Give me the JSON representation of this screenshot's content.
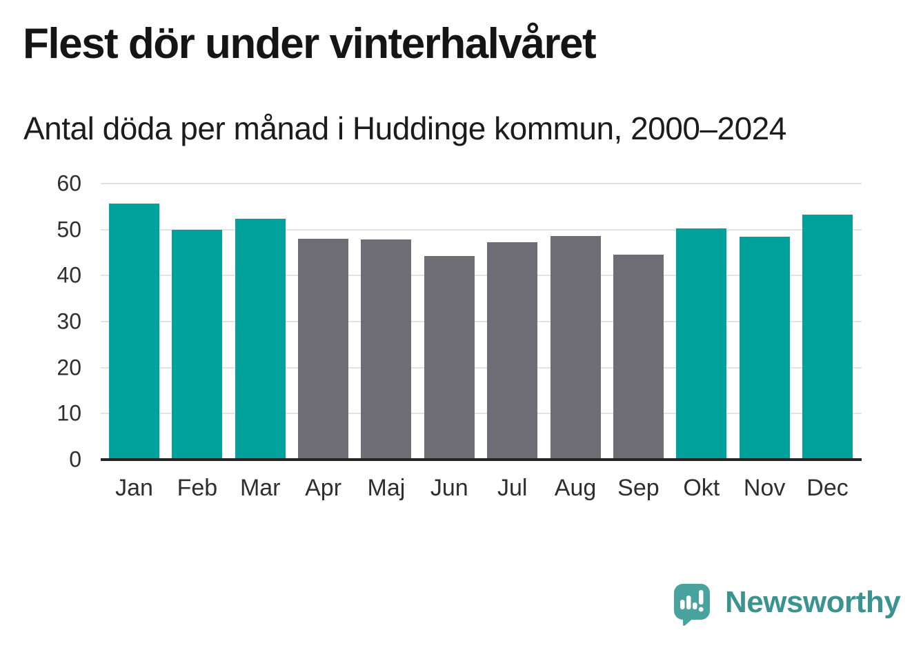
{
  "header": {
    "title": "Flest dör under vinterhalvåret",
    "subtitle": "Antal döda per månad i Huddinge kommun, 2000–2024"
  },
  "chart_data": {
    "type": "bar",
    "title": "Flest dör under vinterhalvåret",
    "subtitle": "Antal döda per månad i Huddinge kommun, 2000–2024",
    "categories": [
      "Jan",
      "Feb",
      "Mar",
      "Apr",
      "Maj",
      "Jun",
      "Jul",
      "Aug",
      "Sep",
      "Okt",
      "Nov",
      "Dec"
    ],
    "values": [
      55.7,
      50.0,
      52.4,
      48.0,
      47.9,
      44.3,
      47.2,
      48.6,
      44.6,
      50.3,
      48.5,
      53.3
    ],
    "bar_season": [
      "winter",
      "winter",
      "winter",
      "summer",
      "summer",
      "summer",
      "summer",
      "summer",
      "summer",
      "winter",
      "winter",
      "winter"
    ],
    "bar_palette": {
      "winter": "#00A29B",
      "summer": "#6E6C74"
    },
    "xlabel": "",
    "ylabel": "",
    "ylim": [
      0,
      60
    ],
    "yticks": [
      0,
      10,
      20,
      30,
      40,
      50,
      60
    ],
    "grid": "horizontal-light",
    "legend": "none",
    "colors": {
      "gridline": "#E2E2E2",
      "axis_line": "#242424",
      "tick_text": "#2E2E2E"
    }
  },
  "footer": {
    "brand": "Newsworthy",
    "brand_text_color": "#3A938F",
    "brand_icon_color": "#48A29D",
    "brand_icon": "speech-bubble-bar-chart-exclamation"
  }
}
